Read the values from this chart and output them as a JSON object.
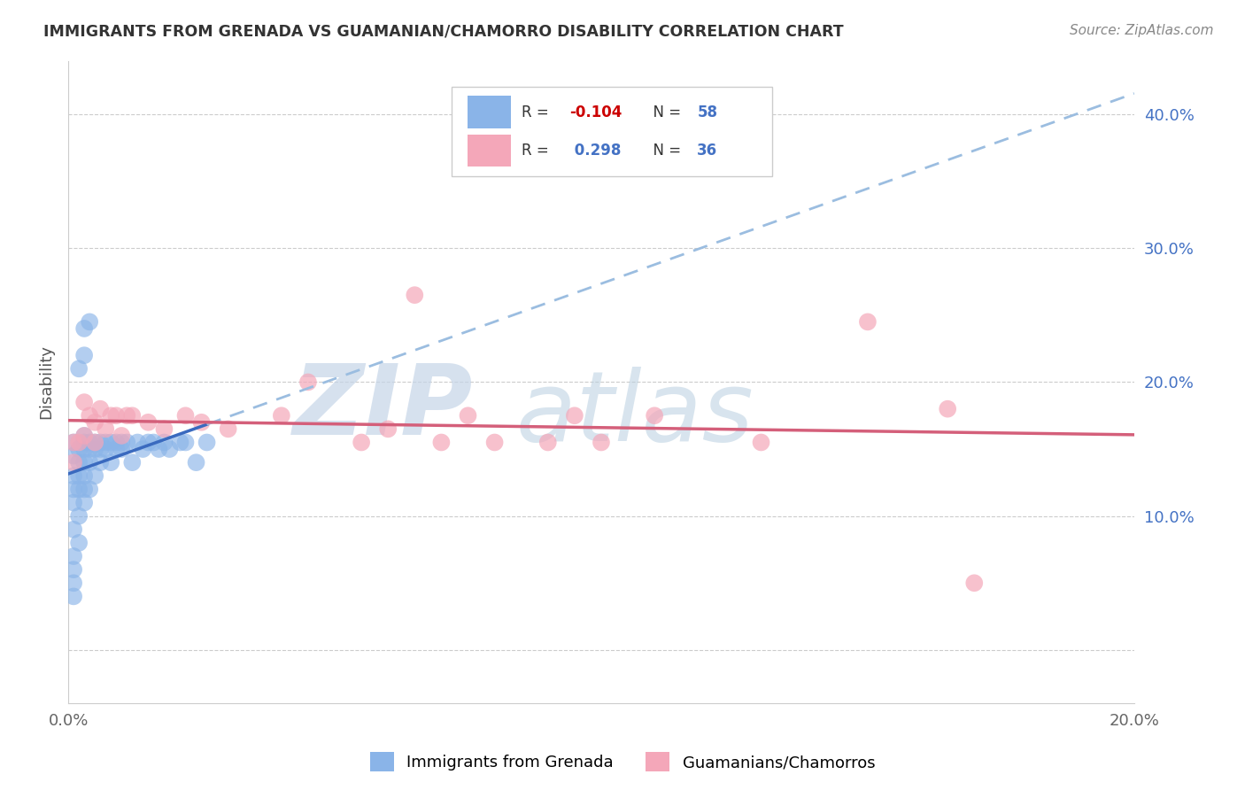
{
  "title": "IMMIGRANTS FROM GRENADA VS GUAMANIAN/CHAMORRO DISABILITY CORRELATION CHART",
  "source": "Source: ZipAtlas.com",
  "ylabel": "Disability",
  "xlim": [
    0.0,
    0.2
  ],
  "ylim": [
    -0.04,
    0.44
  ],
  "color_blue": "#8ab4e8",
  "color_pink": "#f4a7b9",
  "color_blue_line": "#3a6abf",
  "color_pink_line": "#d45f7a",
  "color_blue_dashed": "#9bbde0",
  "watermark": "ZIPatlas",
  "watermark_color": "#c8d8ee",
  "grenada_R": -0.104,
  "grenada_N": 58,
  "guam_R": 0.298,
  "guam_N": 36,
  "grenada_x": [
    0.001,
    0.001,
    0.001,
    0.001,
    0.001,
    0.001,
    0.001,
    0.001,
    0.001,
    0.001,
    0.002,
    0.002,
    0.002,
    0.002,
    0.002,
    0.002,
    0.003,
    0.003,
    0.003,
    0.003,
    0.003,
    0.003,
    0.003,
    0.004,
    0.004,
    0.004,
    0.004,
    0.005,
    0.005,
    0.005,
    0.006,
    0.006,
    0.006,
    0.007,
    0.007,
    0.008,
    0.008,
    0.009,
    0.009,
    0.01,
    0.01,
    0.011,
    0.012,
    0.013,
    0.014,
    0.015,
    0.016,
    0.017,
    0.018,
    0.019,
    0.021,
    0.022,
    0.024,
    0.026,
    0.003,
    0.004,
    0.002,
    0.003
  ],
  "grenada_y": [
    0.155,
    0.145,
    0.13,
    0.12,
    0.11,
    0.09,
    0.07,
    0.06,
    0.05,
    0.04,
    0.15,
    0.14,
    0.13,
    0.12,
    0.1,
    0.08,
    0.16,
    0.155,
    0.15,
    0.14,
    0.13,
    0.12,
    0.11,
    0.155,
    0.15,
    0.14,
    0.12,
    0.155,
    0.15,
    0.13,
    0.155,
    0.15,
    0.14,
    0.155,
    0.15,
    0.155,
    0.14,
    0.155,
    0.15,
    0.155,
    0.15,
    0.155,
    0.14,
    0.155,
    0.15,
    0.155,
    0.155,
    0.15,
    0.155,
    0.15,
    0.155,
    0.155,
    0.14,
    0.155,
    0.24,
    0.245,
    0.21,
    0.22
  ],
  "guam_x": [
    0.001,
    0.001,
    0.002,
    0.003,
    0.003,
    0.004,
    0.005,
    0.005,
    0.006,
    0.007,
    0.008,
    0.009,
    0.01,
    0.011,
    0.012,
    0.015,
    0.018,
    0.022,
    0.025,
    0.03,
    0.04,
    0.045,
    0.055,
    0.06,
    0.065,
    0.07,
    0.075,
    0.08,
    0.09,
    0.095,
    0.1,
    0.11,
    0.13,
    0.15,
    0.165,
    0.17
  ],
  "guam_y": [
    0.155,
    0.14,
    0.155,
    0.185,
    0.16,
    0.175,
    0.17,
    0.155,
    0.18,
    0.165,
    0.175,
    0.175,
    0.16,
    0.175,
    0.175,
    0.17,
    0.165,
    0.175,
    0.17,
    0.165,
    0.175,
    0.2,
    0.155,
    0.165,
    0.265,
    0.155,
    0.175,
    0.155,
    0.155,
    0.175,
    0.155,
    0.175,
    0.155,
    0.245,
    0.18,
    0.05
  ]
}
